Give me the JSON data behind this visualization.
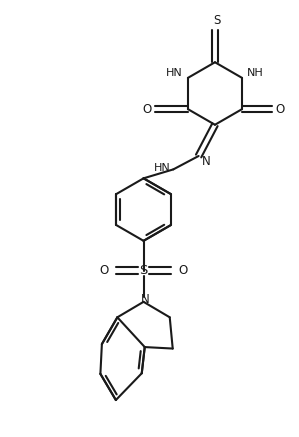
{
  "background_color": "#ffffff",
  "line_color": "#1a1a1a",
  "line_width": 1.5,
  "figsize": [
    2.99,
    4.37
  ],
  "dpi": 100,
  "xlim": [
    0,
    10
  ],
  "ylim": [
    0,
    14.6
  ]
}
